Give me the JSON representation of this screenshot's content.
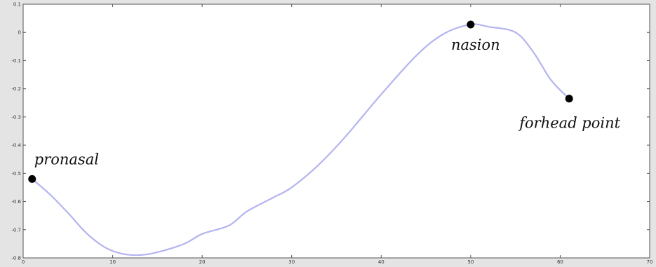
{
  "chart_data": {
    "type": "line",
    "title": "",
    "xlabel": "",
    "ylabel": "",
    "xlim": [
      0,
      70
    ],
    "ylim": [
      -0.8,
      0.1
    ],
    "grid": false,
    "legend": "none",
    "x_ticks": [
      0,
      10,
      20,
      30,
      40,
      50,
      60,
      70
    ],
    "x_tick_labels": [
      "0",
      "10",
      "20",
      "30",
      "40",
      "50",
      "60",
      "70"
    ],
    "y_ticks": [
      0.1,
      0,
      -0.1,
      -0.2,
      -0.3,
      -0.4,
      -0.5,
      -0.6,
      -0.7,
      -0.8
    ],
    "y_tick_labels": [
      "0.1",
      "0",
      "-0.1",
      "-0.2",
      "-0.3",
      "-0.4",
      "-0.5",
      "-0.6",
      "-0.7",
      "-0.8"
    ],
    "line_color": "#b4b4f0",
    "series": [
      {
        "x": [
          1,
          3,
          5,
          7,
          9,
          11,
          13,
          15,
          18,
          20,
          23,
          25,
          28,
          30,
          33,
          36,
          40,
          44,
          47,
          50,
          52,
          55,
          57,
          59,
          61
        ],
        "y": [
          -0.52,
          -0.575,
          -0.64,
          -0.71,
          -0.76,
          -0.785,
          -0.79,
          -0.78,
          -0.75,
          -0.715,
          -0.685,
          -0.635,
          -0.585,
          -0.55,
          -0.47,
          -0.37,
          -0.22,
          -0.08,
          -0.005,
          0.028,
          0.02,
          0.0,
          -0.07,
          -0.17,
          -0.235
        ]
      }
    ],
    "points": [
      {
        "label": "pronasal",
        "x": 1,
        "y": -0.52
      },
      {
        "label": "nasion",
        "x": 50,
        "y": 0.028
      },
      {
        "label": "forhead point",
        "x": 61,
        "y": -0.235
      }
    ]
  }
}
